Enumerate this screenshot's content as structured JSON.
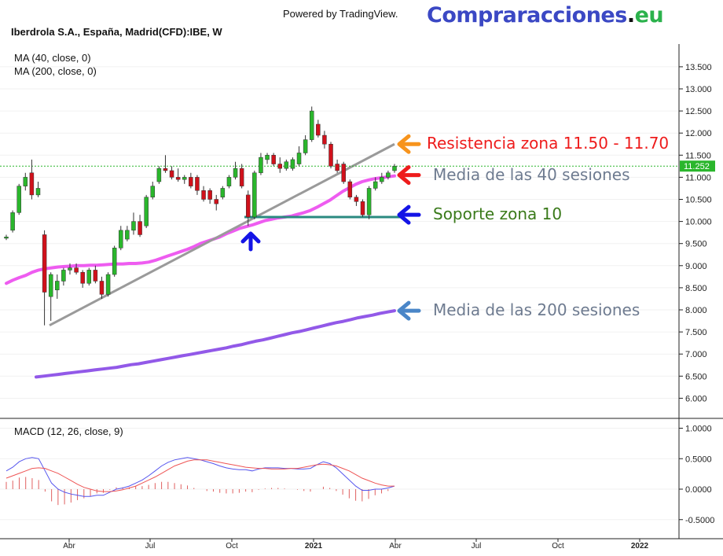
{
  "header": {
    "powered_by": "Powered by TradingView.",
    "brand_part1": "Compraracciones",
    "brand_part2": ".",
    "brand_part3": "eu",
    "symbol": "Iberdrola S.A., España, Madrid(CFD):IBE, W",
    "ma40_label": "MA (40, close, 0)",
    "ma200_label": "MA (200, close, 0)",
    "macd_label": "MACD (12, 26, close, 9)"
  },
  "colors": {
    "up": "#2ab62c",
    "down": "#d0111b",
    "ma40": "#ee5cf0",
    "ma200": "#9259e8",
    "trendline": "#9a9a9a",
    "support": "#2a8a80",
    "macd": "#5656ee",
    "signal": "#ee5555",
    "hist": "#e06060",
    "last_price_line": "#2ab62c"
  },
  "annotations": [
    {
      "text": "Resistencia zona 11.50 - 11.70",
      "color": "#ee1c1c",
      "arrow_color": "#f7941d",
      "price": 11.75
    },
    {
      "text": "Media de las 40 sesiones",
      "color": "#6e7b90",
      "arrow_color": "#ee1c1c",
      "price": 11.05
    },
    {
      "text": "Soporte zona 10",
      "color": "#3a7a1a",
      "arrow_color": "#1414e6",
      "price": 10.15
    },
    {
      "text": "Media de las 200 sesiones",
      "color": "#6e7b90",
      "arrow_color": "#4a86c8",
      "price": 7.98
    }
  ],
  "chart_data": [
    {
      "type": "candlestick",
      "title": "Iberdrola S.A., España, Madrid(CFD):IBE, W",
      "y_axis": {
        "position": "right",
        "ylim": [
          5.6,
          13.8
        ],
        "ticks": [
          "6.000",
          "6.500",
          "7.000",
          "7.500",
          "8.000",
          "8.500",
          "9.000",
          "9.500",
          "10.000",
          "10.500",
          "11.000",
          "11.500",
          "12.000",
          "12.500",
          "13.000",
          "13.500"
        ]
      },
      "x_axis": {
        "ticks": [
          "Abr",
          "Jul",
          "Oct",
          "2021",
          "Abr",
          "Jul",
          "Oct",
          "2022"
        ]
      },
      "last_price": "11.252",
      "candles": [
        {
          "o": 9.62,
          "h": 9.7,
          "l": 9.58,
          "c": 9.65
        },
        {
          "o": 9.8,
          "h": 10.25,
          "l": 9.75,
          "c": 10.2
        },
        {
          "o": 10.2,
          "h": 10.85,
          "l": 10.15,
          "c": 10.8
        },
        {
          "o": 10.8,
          "h": 11.1,
          "l": 10.7,
          "c": 11.0
        },
        {
          "o": 11.1,
          "h": 11.4,
          "l": 10.5,
          "c": 10.6
        },
        {
          "o": 10.6,
          "h": 10.9,
          "l": 10.55,
          "c": 10.75
        },
        {
          "o": 9.7,
          "h": 9.8,
          "l": 7.65,
          "c": 8.4
        },
        {
          "o": 8.3,
          "h": 8.85,
          "l": 7.75,
          "c": 8.8
        },
        {
          "o": 8.45,
          "h": 8.8,
          "l": 8.25,
          "c": 8.65
        },
        {
          "o": 8.65,
          "h": 8.95,
          "l": 8.55,
          "c": 8.9
        },
        {
          "o": 8.9,
          "h": 9.05,
          "l": 8.8,
          "c": 8.95
        },
        {
          "o": 8.95,
          "h": 9.05,
          "l": 8.8,
          "c": 8.85
        },
        {
          "o": 8.85,
          "h": 8.9,
          "l": 8.5,
          "c": 8.6
        },
        {
          "o": 8.6,
          "h": 8.95,
          "l": 8.55,
          "c": 8.9
        },
        {
          "o": 8.9,
          "h": 9.0,
          "l": 8.6,
          "c": 8.65
        },
        {
          "o": 8.65,
          "h": 8.75,
          "l": 8.25,
          "c": 8.35
        },
        {
          "o": 8.35,
          "h": 8.85,
          "l": 8.3,
          "c": 8.8
        },
        {
          "o": 8.8,
          "h": 9.45,
          "l": 8.75,
          "c": 9.4
        },
        {
          "o": 9.4,
          "h": 9.9,
          "l": 9.35,
          "c": 9.8
        },
        {
          "o": 9.6,
          "h": 9.9,
          "l": 9.55,
          "c": 9.8
        },
        {
          "o": 9.8,
          "h": 10.2,
          "l": 9.7,
          "c": 10.0
        },
        {
          "o": 10.0,
          "h": 10.15,
          "l": 9.65,
          "c": 9.7
        },
        {
          "o": 9.9,
          "h": 10.6,
          "l": 9.85,
          "c": 10.55
        },
        {
          "o": 10.55,
          "h": 10.9,
          "l": 10.5,
          "c": 10.8
        },
        {
          "o": 10.9,
          "h": 11.25,
          "l": 10.85,
          "c": 11.2
        },
        {
          "o": 11.2,
          "h": 11.5,
          "l": 11.1,
          "c": 11.15
        },
        {
          "o": 11.15,
          "h": 11.25,
          "l": 10.95,
          "c": 11.0
        },
        {
          "o": 11.0,
          "h": 11.2,
          "l": 10.9,
          "c": 10.95
        },
        {
          "o": 10.95,
          "h": 11.05,
          "l": 10.85,
          "c": 11.0
        },
        {
          "o": 11.0,
          "h": 11.1,
          "l": 10.75,
          "c": 10.8
        },
        {
          "o": 11.0,
          "h": 11.05,
          "l": 10.6,
          "c": 10.7
        },
        {
          "o": 10.7,
          "h": 10.8,
          "l": 10.45,
          "c": 10.5
        },
        {
          "o": 10.7,
          "h": 10.75,
          "l": 10.4,
          "c": 10.5
        },
        {
          "o": 10.5,
          "h": 10.6,
          "l": 10.25,
          "c": 10.4
        },
        {
          "o": 10.55,
          "h": 10.8,
          "l": 10.5,
          "c": 10.75
        },
        {
          "o": 10.8,
          "h": 11.05,
          "l": 10.75,
          "c": 11.0
        },
        {
          "o": 11.0,
          "h": 11.35,
          "l": 10.95,
          "c": 11.2
        },
        {
          "o": 11.2,
          "h": 11.3,
          "l": 10.75,
          "c": 10.8
        },
        {
          "o": 10.6,
          "h": 10.7,
          "l": 9.9,
          "c": 10.1
        },
        {
          "o": 10.1,
          "h": 11.15,
          "l": 10.05,
          "c": 11.1
        },
        {
          "o": 11.1,
          "h": 11.55,
          "l": 11.05,
          "c": 11.45
        },
        {
          "o": 11.4,
          "h": 11.55,
          "l": 11.3,
          "c": 11.5
        },
        {
          "o": 11.5,
          "h": 11.55,
          "l": 11.25,
          "c": 11.3
        },
        {
          "o": 11.3,
          "h": 11.45,
          "l": 11.1,
          "c": 11.2
        },
        {
          "o": 11.2,
          "h": 11.4,
          "l": 11.15,
          "c": 11.35
        },
        {
          "o": 11.2,
          "h": 11.45,
          "l": 11.15,
          "c": 11.4
        },
        {
          "o": 11.3,
          "h": 11.7,
          "l": 11.25,
          "c": 11.55
        },
        {
          "o": 11.55,
          "h": 11.95,
          "l": 11.5,
          "c": 11.85
        },
        {
          "o": 11.85,
          "h": 12.6,
          "l": 11.8,
          "c": 12.5
        },
        {
          "o": 12.2,
          "h": 12.3,
          "l": 11.9,
          "c": 11.95
        },
        {
          "o": 11.95,
          "h": 12.05,
          "l": 11.65,
          "c": 11.75
        },
        {
          "o": 11.75,
          "h": 11.8,
          "l": 11.2,
          "c": 11.25
        },
        {
          "o": 11.3,
          "h": 11.4,
          "l": 11.1,
          "c": 11.15
        },
        {
          "o": 11.3,
          "h": 11.35,
          "l": 10.85,
          "c": 10.9
        },
        {
          "o": 10.9,
          "h": 10.95,
          "l": 10.5,
          "c": 10.55
        },
        {
          "o": 10.55,
          "h": 10.6,
          "l": 10.35,
          "c": 10.45
        },
        {
          "o": 10.45,
          "h": 10.5,
          "l": 10.1,
          "c": 10.15
        },
        {
          "o": 10.15,
          "h": 10.8,
          "l": 10.05,
          "c": 10.75
        },
        {
          "o": 10.75,
          "h": 11.0,
          "l": 10.7,
          "c": 10.9
        },
        {
          "o": 10.9,
          "h": 11.1,
          "l": 10.85,
          "c": 11.0
        },
        {
          "o": 11.0,
          "h": 11.15,
          "l": 10.95,
          "c": 11.1
        },
        {
          "o": 11.15,
          "h": 11.3,
          "l": 11.1,
          "c": 11.25
        }
      ],
      "ma40": [
        8.6,
        8.67,
        8.73,
        8.78,
        8.85,
        8.9,
        8.93,
        8.95,
        8.97,
        8.98,
        8.99,
        9.0,
        9.0,
        9.01,
        9.01,
        9.02,
        9.03,
        9.04,
        9.04,
        9.05,
        9.05,
        9.06,
        9.08,
        9.12,
        9.17,
        9.22,
        9.27,
        9.32,
        9.37,
        9.43,
        9.5,
        9.55,
        9.6,
        9.65,
        9.72,
        9.78,
        9.84,
        9.88,
        9.92,
        9.97,
        10.02,
        10.05,
        10.08,
        10.1,
        10.12,
        10.16,
        10.2,
        10.25,
        10.32,
        10.4,
        10.48,
        10.58,
        10.68,
        10.76,
        10.84,
        10.9,
        10.94,
        10.97,
        10.99,
        11.01,
        11.03
      ],
      "ma200": [
        6.48,
        6.5,
        6.52,
        6.54,
        6.56,
        6.58,
        6.6,
        6.62,
        6.64,
        6.66,
        6.68,
        6.7,
        6.73,
        6.76,
        6.78,
        6.81,
        6.84,
        6.87,
        6.9,
        6.93,
        6.96,
        6.99,
        7.02,
        7.05,
        7.08,
        7.11,
        7.14,
        7.18,
        7.21,
        7.25,
        7.29,
        7.32,
        7.36,
        7.4,
        7.44,
        7.48,
        7.51,
        7.55,
        7.59,
        7.63,
        7.67,
        7.71,
        7.74,
        7.78,
        7.82,
        7.85,
        7.88,
        7.92,
        7.95,
        7.98
      ],
      "trendline": {
        "start": 7.65,
        "end": 11.75
      },
      "support_level": 10.1,
      "last_price_line": 11.252
    },
    {
      "type": "line",
      "title": "MACD (12, 26, close, 9)",
      "y_axis": {
        "position": "right",
        "ylim": [
          -1.0,
          1.25
        ],
        "ticks": [
          "1.0000",
          "0.5000",
          "0.0000",
          "-0.5000"
        ]
      },
      "series": [
        {
          "name": "MACD",
          "values": [
            0.3,
            0.36,
            0.45,
            0.5,
            0.52,
            0.5,
            0.3,
            0.1,
            0.0,
            -0.05,
            -0.08,
            -0.1,
            -0.12,
            -0.12,
            -0.1,
            -0.1,
            -0.05,
            0.0,
            0.02,
            0.05,
            0.1,
            0.15,
            0.22,
            0.3,
            0.38,
            0.44,
            0.48,
            0.5,
            0.52,
            0.5,
            0.48,
            0.45,
            0.42,
            0.38,
            0.35,
            0.33,
            0.32,
            0.32,
            0.3,
            0.33,
            0.35,
            0.35,
            0.35,
            0.34,
            0.34,
            0.33,
            0.33,
            0.34,
            0.4,
            0.45,
            0.42,
            0.35,
            0.25,
            0.15,
            0.05,
            -0.02,
            -0.02,
            0.0,
            0.0,
            0.02,
            0.05
          ]
        },
        {
          "name": "Signal",
          "values": [
            0.18,
            0.22,
            0.26,
            0.3,
            0.34,
            0.35,
            0.34,
            0.3,
            0.26,
            0.2,
            0.14,
            0.08,
            0.03,
            0.0,
            -0.03,
            -0.04,
            -0.04,
            -0.03,
            -0.01,
            0.02,
            0.05,
            0.1,
            0.15,
            0.2,
            0.26,
            0.32,
            0.38,
            0.42,
            0.46,
            0.48,
            0.48,
            0.48,
            0.46,
            0.44,
            0.42,
            0.4,
            0.38,
            0.36,
            0.35,
            0.34,
            0.34,
            0.33,
            0.33,
            0.33,
            0.34,
            0.34,
            0.36,
            0.38,
            0.4,
            0.41,
            0.4,
            0.38,
            0.34,
            0.3,
            0.24,
            0.18,
            0.14,
            0.1,
            0.07,
            0.05,
            0.05
          ]
        }
      ],
      "histogram": [
        0.12,
        0.14,
        0.19,
        0.2,
        0.18,
        0.15,
        -0.04,
        -0.2,
        -0.26,
        -0.25,
        -0.22,
        -0.18,
        -0.15,
        -0.12,
        -0.07,
        -0.06,
        -0.01,
        0.03,
        0.03,
        0.03,
        0.05,
        0.05,
        0.07,
        0.1,
        0.12,
        0.12,
        0.1,
        0.08,
        0.06,
        0.02,
        0.0,
        -0.03,
        -0.04,
        -0.06,
        -0.07,
        -0.07,
        -0.06,
        -0.04,
        -0.05,
        -0.01,
        0.01,
        0.02,
        0.02,
        0.01,
        0.0,
        -0.01,
        -0.03,
        -0.04,
        0.0,
        0.04,
        0.02,
        -0.03,
        -0.09,
        -0.15,
        -0.19,
        -0.2,
        -0.16,
        -0.1,
        -0.07,
        -0.03,
        0.0
      ]
    }
  ]
}
